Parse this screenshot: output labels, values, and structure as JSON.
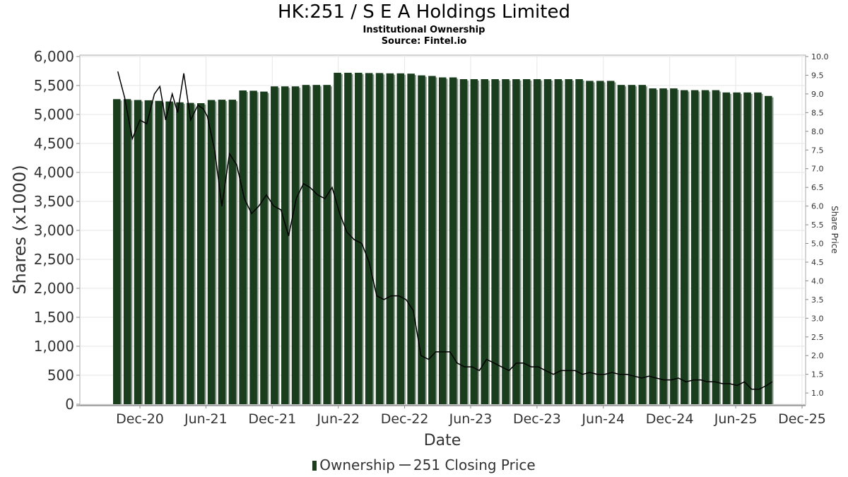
{
  "title": "HK:251 / S E A Holdings Limited",
  "subtitle": "Institutional Ownership",
  "source": "Source: Fintel.io",
  "colors": {
    "bar": "#1a3d1d",
    "bar_shadow": "#8a998b",
    "line": "#000000",
    "grid": "#e6e6e6"
  },
  "chart_data": {
    "type": "bar",
    "xlabel": "Date",
    "ylabel": "Shares (x1000)",
    "y2label": "Share Price",
    "ylim": [
      0,
      6000
    ],
    "y2lim": [
      0.7,
      10.0
    ],
    "yticks": [
      "0",
      "500",
      "1,000",
      "1,500",
      "2,000",
      "2,500",
      "3,000",
      "3,500",
      "4,000",
      "4,500",
      "5,000",
      "5,500",
      "6,000"
    ],
    "y2ticks": [
      "1.0",
      "1.5",
      "2.0",
      "2.5",
      "3.0",
      "3.5",
      "4.0",
      "4.5",
      "5.0",
      "5.5",
      "6.0",
      "6.5",
      "7.0",
      "7.5",
      "8.0",
      "8.5",
      "9.0",
      "9.5",
      "10.0"
    ],
    "xticks": [
      "Dec-20",
      "Jun-21",
      "Dec-21",
      "Jun-22",
      "Dec-22",
      "Jun-23",
      "Dec-23",
      "Jun-24",
      "Dec-24",
      "Jun-25",
      "Dec-25"
    ],
    "grid": true,
    "legend_position": "bottom",
    "series": [
      {
        "name": "Ownership",
        "type": "bar",
        "values": [
          5265,
          5265,
          5250,
          5245,
          5235,
          5225,
          5210,
          5200,
          5195,
          5250,
          5255,
          5255,
          5415,
          5410,
          5395,
          5485,
          5485,
          5485,
          5510,
          5510,
          5510,
          5720,
          5720,
          5720,
          5715,
          5715,
          5710,
          5710,
          5705,
          5675,
          5665,
          5640,
          5640,
          5610,
          5610,
          5610,
          5610,
          5610,
          5610,
          5610,
          5610,
          5610,
          5610,
          5610,
          5610,
          5580,
          5580,
          5580,
          5510,
          5510,
          5510,
          5450,
          5450,
          5450,
          5420,
          5420,
          5420,
          5420,
          5380,
          5380,
          5380,
          5380,
          5320
        ]
      },
      {
        "name": "251 Closing Price",
        "type": "line",
        "x": [
          "2020-10-01",
          "2020-10-20",
          "2020-11-10",
          "2020-12-01",
          "2020-12-20",
          "2021-01-10",
          "2021-01-25",
          "2021-02-10",
          "2021-02-28",
          "2021-03-15",
          "2021-04-01",
          "2021-04-20",
          "2021-05-10",
          "2021-05-25",
          "2021-06-05",
          "2021-06-25",
          "2021-07-15",
          "2021-08-05",
          "2021-08-25",
          "2021-09-15",
          "2021-10-05",
          "2021-10-25",
          "2021-11-15",
          "2021-12-05",
          "2021-12-25",
          "2022-01-15",
          "2022-02-05",
          "2022-02-25",
          "2022-03-15",
          "2022-04-05",
          "2022-04-25",
          "2022-05-15",
          "2022-06-05",
          "2022-06-25",
          "2022-07-15",
          "2022-08-05",
          "2022-08-25",
          "2022-09-15",
          "2022-10-05",
          "2022-10-25",
          "2022-11-15",
          "2022-12-05",
          "2022-12-25",
          "2023-01-15",
          "2023-02-05",
          "2023-02-25",
          "2023-03-15",
          "2023-04-05",
          "2023-04-25",
          "2023-05-15",
          "2023-06-05",
          "2023-06-25",
          "2023-07-15",
          "2023-08-05",
          "2023-08-25",
          "2023-09-15",
          "2023-10-05",
          "2023-10-25",
          "2023-11-15",
          "2023-12-05",
          "2023-12-25",
          "2024-01-15",
          "2024-02-05",
          "2024-02-25",
          "2024-03-15",
          "2024-04-05",
          "2024-04-25",
          "2024-05-15",
          "2024-06-05",
          "2024-06-25",
          "2024-07-15",
          "2024-08-05",
          "2024-08-25",
          "2024-09-15",
          "2024-10-05",
          "2024-10-25",
          "2024-11-15",
          "2024-12-05",
          "2024-12-25",
          "2025-01-15",
          "2025-02-05",
          "2025-02-25",
          "2025-03-15",
          "2025-04-05",
          "2025-04-25",
          "2025-05-15",
          "2025-06-05",
          "2025-06-25",
          "2025-07-15",
          "2025-08-05",
          "2025-08-25",
          "2025-09-10"
        ],
        "y": [
          9.6,
          8.9,
          7.8,
          8.3,
          8.2,
          9.0,
          9.2,
          8.3,
          9.0,
          8.5,
          9.55,
          8.3,
          8.7,
          8.6,
          8.4,
          7.5,
          6.0,
          7.4,
          7.1,
          6.2,
          5.8,
          6.0,
          6.3,
          6.0,
          5.9,
          5.2,
          6.2,
          6.6,
          6.5,
          6.3,
          6.2,
          6.5,
          5.8,
          5.3,
          5.1,
          5.0,
          4.5,
          3.6,
          3.5,
          3.6,
          3.6,
          3.5,
          3.2,
          2.0,
          1.9,
          2.1,
          2.1,
          2.1,
          1.8,
          1.7,
          1.7,
          1.6,
          1.9,
          1.8,
          1.7,
          1.6,
          1.8,
          1.8,
          1.7,
          1.7,
          1.6,
          1.5,
          1.6,
          1.6,
          1.6,
          1.5,
          1.55,
          1.5,
          1.5,
          1.55,
          1.5,
          1.5,
          1.45,
          1.4,
          1.45,
          1.4,
          1.35,
          1.35,
          1.4,
          1.3,
          1.35,
          1.35,
          1.3,
          1.3,
          1.25,
          1.25,
          1.2,
          1.3,
          1.1,
          1.1,
          1.2,
          1.3
        ]
      }
    ]
  }
}
